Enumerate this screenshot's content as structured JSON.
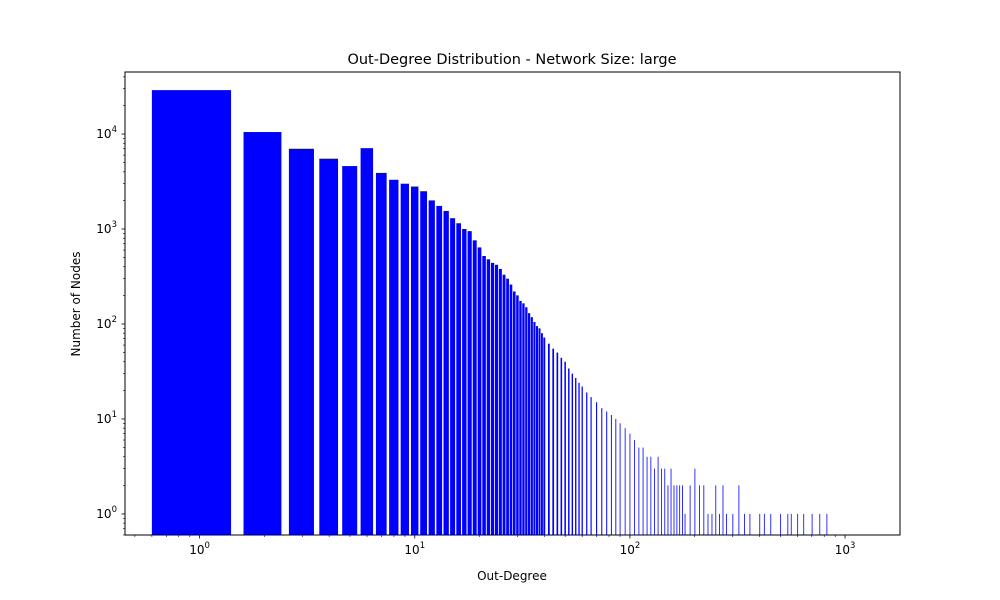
{
  "chart_data": {
    "type": "bar",
    "title": "Out-Degree Distribution - Network Size: large",
    "xlabel": "Out-Degree",
    "ylabel": "Number of Nodes",
    "x_scale": "log",
    "y_scale": "log",
    "xlim": [
      0.45,
      1800
    ],
    "ylim": [
      0.6,
      45000
    ],
    "grid": false,
    "legend": "none",
    "bar_color": "#0000ff",
    "x_ticks": [
      {
        "value": 1,
        "base": "10",
        "exp": "0"
      },
      {
        "value": 10,
        "base": "10",
        "exp": "1"
      },
      {
        "value": 100,
        "base": "10",
        "exp": "2"
      },
      {
        "value": 1000,
        "base": "10",
        "exp": "3"
      }
    ],
    "y_ticks": [
      {
        "value": 1,
        "base": "10",
        "exp": "0"
      },
      {
        "value": 10,
        "base": "10",
        "exp": "1"
      },
      {
        "value": 100,
        "base": "10",
        "exp": "2"
      },
      {
        "value": 1000,
        "base": "10",
        "exp": "3"
      },
      {
        "value": 10000,
        "base": "10",
        "exp": "4"
      }
    ],
    "series": [
      {
        "x": [
          1,
          2,
          3,
          4,
          5,
          6,
          7,
          8,
          9,
          10,
          11,
          12,
          13,
          14,
          15,
          16,
          17,
          18,
          19,
          20,
          21,
          22,
          23,
          24,
          25,
          26,
          27,
          28,
          29,
          30,
          31,
          32,
          33,
          34,
          35,
          36,
          37,
          38,
          39,
          40,
          42,
          44,
          46,
          48,
          50,
          52,
          54,
          56,
          58,
          60,
          63,
          66,
          70,
          74,
          78,
          82,
          86,
          90,
          95,
          100,
          105,
          110,
          115,
          120,
          125,
          130,
          135,
          140,
          145,
          150,
          155,
          160,
          165,
          170,
          175,
          180,
          190,
          200,
          210,
          220,
          230,
          240,
          250,
          260,
          270,
          280,
          300,
          320,
          340,
          360,
          400,
          420,
          450,
          500,
          540,
          560,
          600,
          640,
          700,
          760,
          820
        ],
        "y": [
          29000,
          10500,
          7000,
          5500,
          4600,
          7100,
          3900,
          3300,
          3000,
          2800,
          2500,
          2000,
          1750,
          1550,
          1300,
          1150,
          1000,
          950,
          760,
          640,
          520,
          480,
          440,
          420,
          380,
          330,
          300,
          260,
          220,
          200,
          175,
          165,
          150,
          130,
          118,
          105,
          95,
          90,
          80,
          72,
          62,
          55,
          50,
          44,
          40,
          34,
          30,
          27,
          24,
          22,
          19,
          17,
          15,
          13,
          12,
          11,
          10,
          9,
          8,
          7,
          6,
          5,
          5,
          4,
          4,
          3,
          4,
          3,
          3,
          2,
          3,
          2,
          2,
          2,
          2,
          1,
          2,
          3,
          2,
          2,
          1,
          1,
          2,
          1,
          2,
          1,
          1,
          2,
          1,
          1,
          1,
          1,
          1,
          1,
          1,
          1,
          1,
          1,
          1,
          1,
          1
        ]
      }
    ]
  }
}
